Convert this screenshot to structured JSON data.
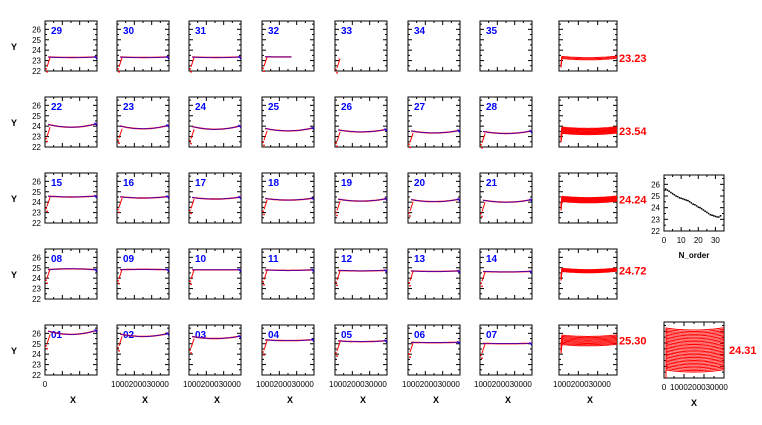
{
  "figure": {
    "y_axis_label": "Y",
    "x_axis_label": "X",
    "order_x_label": "N_order",
    "y_ticks": [
      "22",
      "23",
      "24",
      "25",
      "26"
    ],
    "x_ticks_first": "0",
    "x_ticks_run": "1000200030000",
    "order_x_ticks": [
      "0",
      "10",
      "20",
      "30"
    ],
    "colors": {
      "data": "#ff0000",
      "fit": "#0000ff",
      "overlay": "#ff0000",
      "text_blue": "#0000ff",
      "text_red": "#ff0000",
      "axis": "#000000"
    }
  },
  "chart_data": {
    "type": "line",
    "xlim": [
      0,
      3000
    ],
    "ylim": [
      22,
      26.8
    ],
    "rows": [
      {
        "orders": [
          {
            "label": "29",
            "y": 23.3,
            "curv": 0.05,
            "rise": true,
            "extent": 3000
          },
          {
            "label": "30",
            "y": 23.3,
            "curv": 0.05,
            "rise": true,
            "extent": 3000
          },
          {
            "label": "31",
            "y": 23.3,
            "curv": 0.05,
            "rise": true,
            "extent": 3000
          },
          {
            "label": "32",
            "y": 23.35,
            "curv": 0.02,
            "rise": true,
            "extent": 1700
          },
          {
            "label": "33",
            "y": 23.2,
            "curv": 0.0,
            "rise": true,
            "extent": 200
          },
          {
            "label": "34",
            "y": null,
            "curv": 0,
            "rise": false,
            "extent": 0
          },
          {
            "label": "35",
            "y": null,
            "curv": 0,
            "rise": false,
            "extent": 0
          }
        ],
        "summary": "23.23"
      },
      {
        "orders": [
          {
            "label": "22",
            "y": 23.9,
            "curv": 0.35,
            "rise": true,
            "extent": 3000
          },
          {
            "label": "23",
            "y": 23.75,
            "curv": 0.35,
            "rise": true,
            "extent": 3000
          },
          {
            "label": "24",
            "y": 23.7,
            "curv": 0.35,
            "rise": true,
            "extent": 3000
          },
          {
            "label": "25",
            "y": 23.55,
            "curv": 0.3,
            "rise": true,
            "extent": 3000
          },
          {
            "label": "26",
            "y": 23.45,
            "curv": 0.25,
            "rise": true,
            "extent": 3000
          },
          {
            "label": "27",
            "y": 23.35,
            "curv": 0.25,
            "rise": true,
            "extent": 3000
          },
          {
            "label": "28",
            "y": 23.3,
            "curv": 0.25,
            "rise": true,
            "extent": 3000
          }
        ],
        "summary": "23.54"
      },
      {
        "orders": [
          {
            "label": "15",
            "y": 24.5,
            "curv": 0.1,
            "rise": true,
            "extent": 3000
          },
          {
            "label": "16",
            "y": 24.4,
            "curv": 0.15,
            "rise": true,
            "extent": 3000
          },
          {
            "label": "17",
            "y": 24.3,
            "curv": 0.2,
            "rise": true,
            "extent": 3000
          },
          {
            "label": "18",
            "y": 24.2,
            "curv": 0.2,
            "rise": true,
            "extent": 3000
          },
          {
            "label": "19",
            "y": 24.1,
            "curv": 0.25,
            "rise": true,
            "extent": 3000
          },
          {
            "label": "20",
            "y": 24.05,
            "curv": 0.25,
            "rise": true,
            "extent": 3000
          },
          {
            "label": "21",
            "y": 24.0,
            "curv": 0.25,
            "rise": true,
            "extent": 3000
          }
        ],
        "summary": "24.24"
      },
      {
        "orders": [
          {
            "label": "08",
            "y": 24.9,
            "curv": -0.1,
            "rise": true,
            "extent": 3000
          },
          {
            "label": "09",
            "y": 24.85,
            "curv": -0.05,
            "rise": true,
            "extent": 3000
          },
          {
            "label": "10",
            "y": 24.8,
            "curv": 0.0,
            "rise": true,
            "extent": 3000
          },
          {
            "label": "11",
            "y": 24.75,
            "curv": 0.05,
            "rise": true,
            "extent": 3000
          },
          {
            "label": "12",
            "y": 24.7,
            "curv": 0.05,
            "rise": true,
            "extent": 3000
          },
          {
            "label": "13",
            "y": 24.65,
            "curv": 0.05,
            "rise": true,
            "extent": 3000
          },
          {
            "label": "14",
            "y": 24.6,
            "curv": 0.05,
            "rise": true,
            "extent": 3000
          }
        ],
        "summary": "24.72"
      },
      {
        "orders": [
          {
            "label": "01",
            "y": 25.9,
            "curv": 0.4,
            "rise": true,
            "extent": 3000
          },
          {
            "label": "02",
            "y": 25.7,
            "curv": 0.3,
            "rise": true,
            "extent": 3000
          },
          {
            "label": "03",
            "y": 25.5,
            "curv": 0.25,
            "rise": true,
            "extent": 3000
          },
          {
            "label": "04",
            "y": 25.3,
            "curv": 0.1,
            "rise": true,
            "extent": 3000
          },
          {
            "label": "05",
            "y": 25.2,
            "curv": 0.1,
            "rise": true,
            "extent": 3000
          },
          {
            "label": "06",
            "y": 25.1,
            "curv": 0.05,
            "rise": true,
            "extent": 3000
          },
          {
            "label": "07",
            "y": 25.0,
            "curv": 0.05,
            "rise": true,
            "extent": 3000
          }
        ],
        "summary": "25.30"
      }
    ],
    "order_mean": {
      "xlim": [
        0,
        35
      ],
      "ylim": [
        22,
        26.8
      ],
      "points": [
        [
          1,
          25.6
        ],
        [
          2,
          25.5
        ],
        [
          3,
          25.4
        ],
        [
          4,
          25.3
        ],
        [
          5,
          25.2
        ],
        [
          6,
          25.1
        ],
        [
          7,
          25.0
        ],
        [
          8,
          24.95
        ],
        [
          9,
          24.85
        ],
        [
          10,
          24.8
        ],
        [
          11,
          24.75
        ],
        [
          12,
          24.7
        ],
        [
          13,
          24.65
        ],
        [
          14,
          24.6
        ],
        [
          15,
          24.5
        ],
        [
          16,
          24.4
        ],
        [
          17,
          24.3
        ],
        [
          18,
          24.25
        ],
        [
          19,
          24.15
        ],
        [
          20,
          24.05
        ],
        [
          21,
          24.0
        ],
        [
          22,
          23.9
        ],
        [
          23,
          23.8
        ],
        [
          24,
          23.7
        ],
        [
          25,
          23.6
        ],
        [
          26,
          23.5
        ],
        [
          27,
          23.4
        ],
        [
          28,
          23.35
        ],
        [
          29,
          23.3
        ],
        [
          30,
          23.25
        ],
        [
          31,
          23.2
        ],
        [
          32,
          23.2
        ],
        [
          33,
          23.3
        ]
      ]
    },
    "combined_summary": "24.31"
  }
}
